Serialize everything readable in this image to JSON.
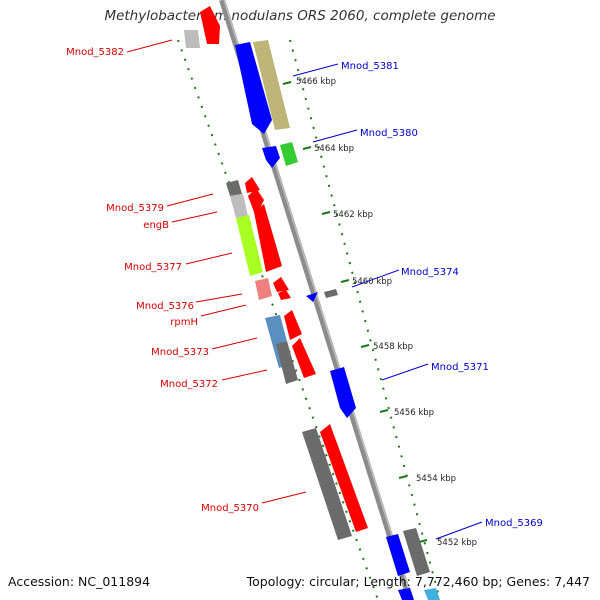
{
  "title": "Methylobacterium nodulans ORS 2060, complete genome",
  "footer": {
    "accession": "Accession: NC_011894",
    "topology": "Topology: circular; Length: 7,772,460 bp; Genes: 7,447"
  },
  "scale": {
    "unit": "kbp",
    "ticks": [
      "5466 kbp",
      "5464 kbp",
      "5462 kbp",
      "5460 kbp",
      "5458 kbp",
      "5456 kbp",
      "5454 kbp",
      "5452 kbp"
    ]
  },
  "colors": {
    "backbone": "#8c8c8c",
    "tick": "#1a7a1a",
    "left_label": "#d40000",
    "right_label": "#0000c8",
    "gene_red": "#ff0000",
    "gene_blue": "#0000ff",
    "gene_gray": "#6b6b6b",
    "gene_khaki": "#bdb57a",
    "gene_green": "#33cc33",
    "gene_lime": "#aaff22",
    "gene_steel": "#5a8fc0",
    "gene_pink": "#f08080"
  },
  "left_labels": [
    "Mnod_5382",
    "Mnod_5379",
    "engB",
    "Mnod_5377",
    "Mnod_5376",
    "rpmH",
    "Mnod_5373",
    "Mnod_5372",
    "Mnod_5370"
  ],
  "right_labels": [
    "Mnod_5381",
    "Mnod_5380",
    "Mnod_5374",
    "Mnod_5371",
    "Mnod_5369"
  ]
}
